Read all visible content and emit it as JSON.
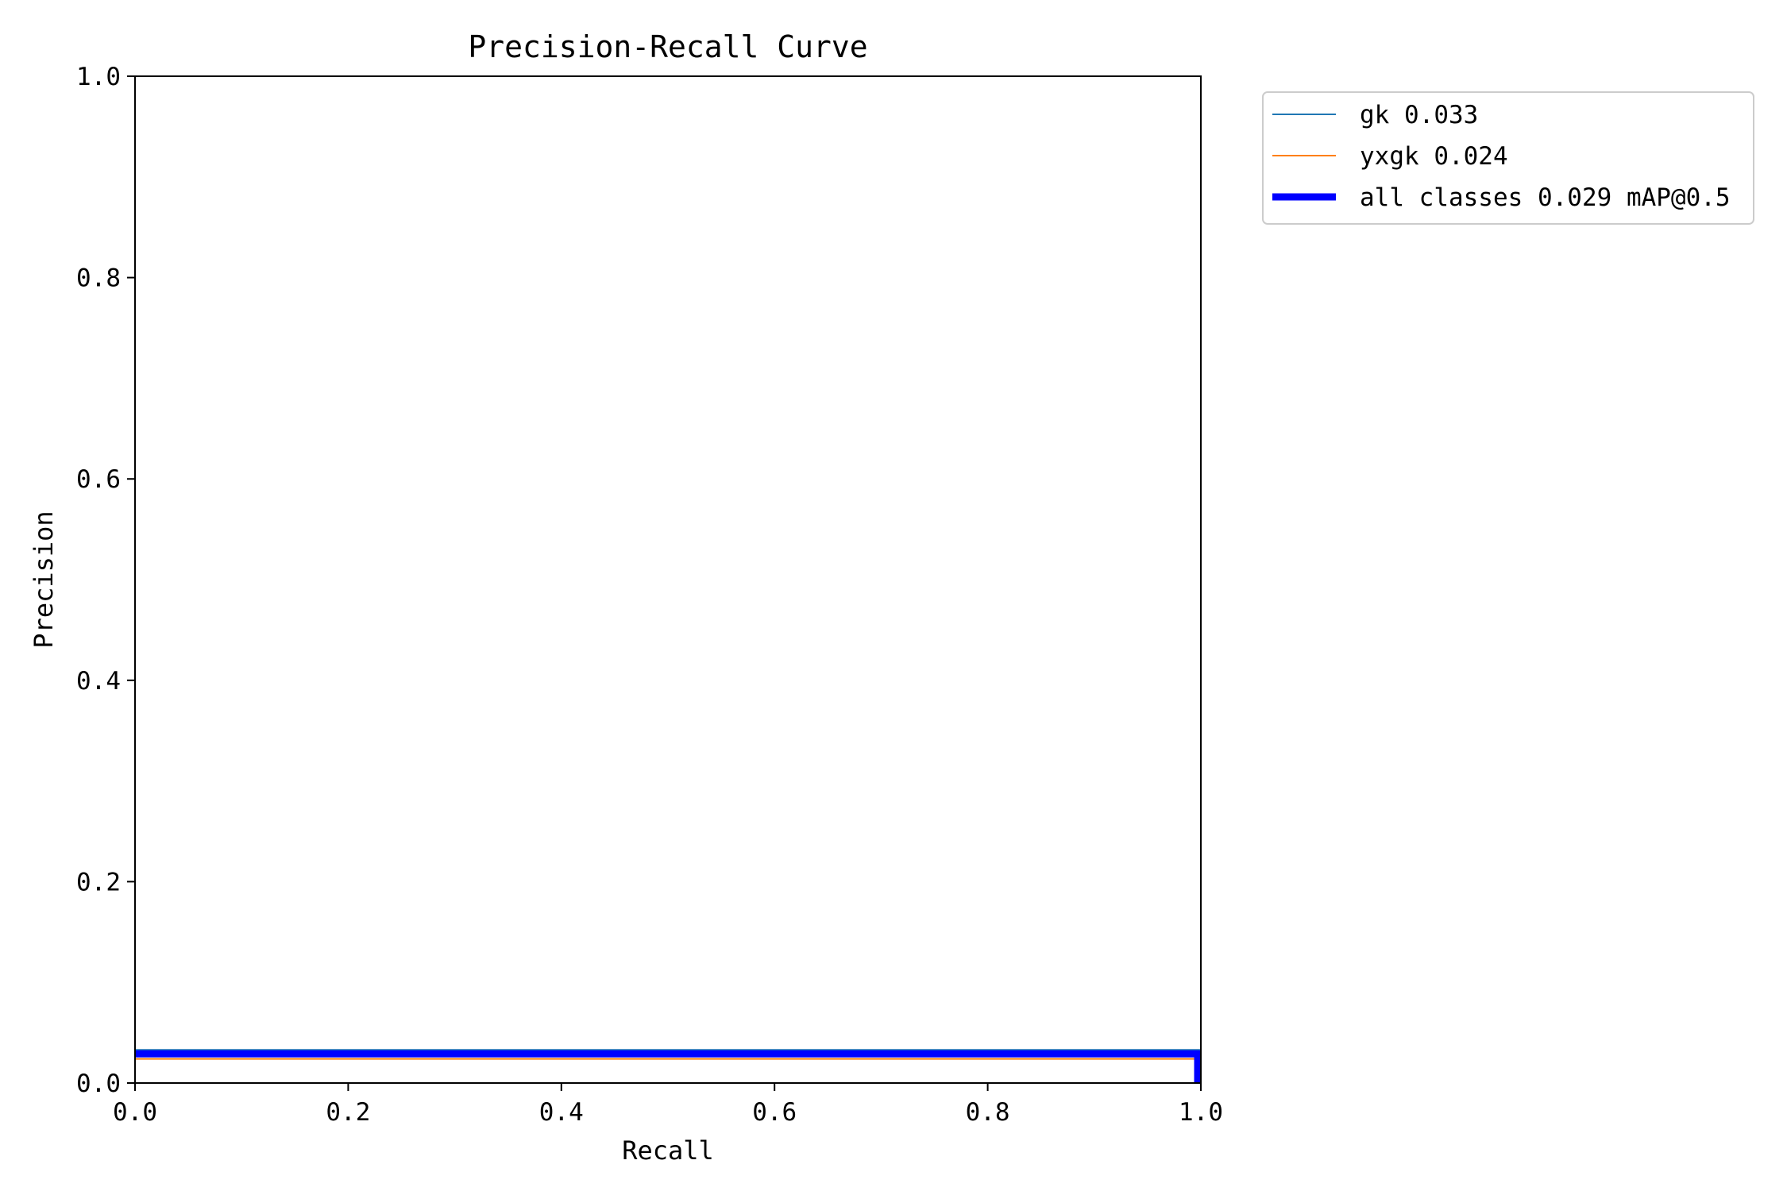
{
  "chart_data": {
    "type": "line",
    "title": "Precision-Recall Curve",
    "xlabel": "Recall",
    "ylabel": "Precision",
    "xlim": [
      0,
      1
    ],
    "ylim": [
      0,
      1
    ],
    "x_ticks": [
      "0.0",
      "0.2",
      "0.4",
      "0.6",
      "0.8",
      "1.0"
    ],
    "y_ticks": [
      "0.0",
      "0.2",
      "0.4",
      "0.6",
      "0.8",
      "1.0"
    ],
    "grid": false,
    "legend_position": "outside-top-right",
    "series": [
      {
        "name": "gk 0.033",
        "color": "#1f77b4",
        "style": "thin",
        "x": [
          0.0,
          1.0
        ],
        "y": [
          0.033,
          0.033
        ]
      },
      {
        "name": "yxgk 0.024",
        "color": "#ff7f0e",
        "style": "thin",
        "x": [
          0.0,
          1.0
        ],
        "y": [
          0.024,
          0.024
        ]
      },
      {
        "name": "all classes 0.029 mAP@0.5",
        "color": "#0000ff",
        "style": "thick",
        "x": [
          0.0,
          0.997,
          0.997
        ],
        "y": [
          0.029,
          0.029,
          0.0
        ]
      }
    ]
  }
}
